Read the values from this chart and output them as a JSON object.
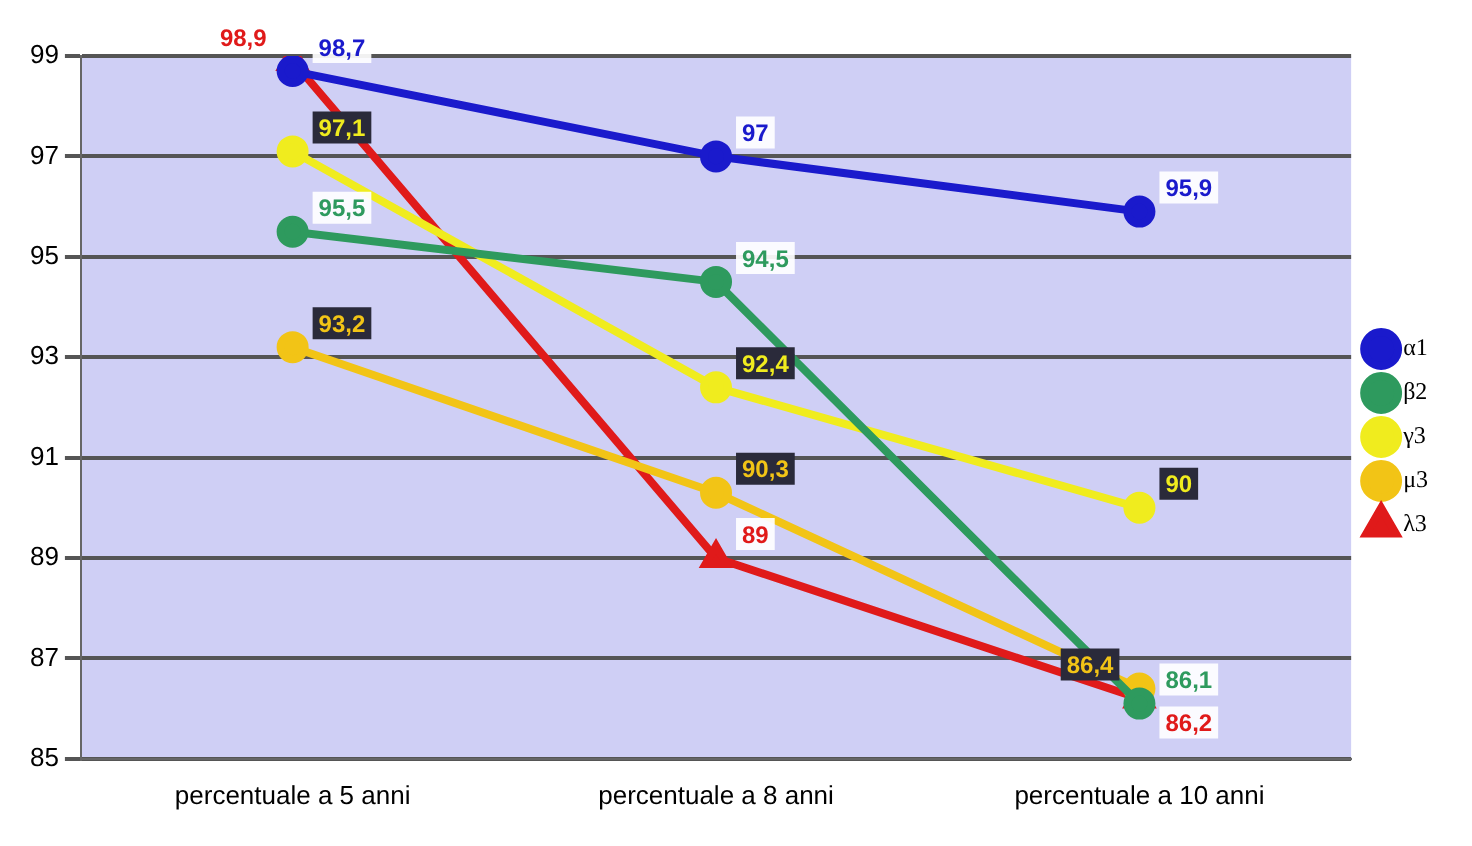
{
  "chart_data": {
    "type": "line",
    "categories": [
      "percentuale a 5 anni",
      "percentuale a 8 anni",
      "percentuale a 10 anni"
    ],
    "series": [
      {
        "name": "α1",
        "color": "#1a1acc",
        "values": [
          98.7,
          97,
          95.9
        ],
        "value_labels": [
          "98,7",
          "97",
          "95,9"
        ],
        "marker": "circle"
      },
      {
        "name": "β2",
        "color": "#2e9a5e",
        "values": [
          95.5,
          94.5,
          86.1
        ],
        "value_labels": [
          "95,5",
          "94,5",
          "86,1"
        ],
        "marker": "circle"
      },
      {
        "name": "γ3",
        "color": "#f0ec1e",
        "values": [
          97.1,
          92.4,
          90
        ],
        "value_labels": [
          "97,1",
          "92,4",
          "90"
        ],
        "marker": "circle"
      },
      {
        "name": "μ3",
        "color": "#f2c416",
        "values": [
          93.2,
          90.3,
          86.4
        ],
        "value_labels": [
          "93,2",
          "90,3",
          "86,4"
        ],
        "marker": "circle"
      },
      {
        "name": "λ3",
        "color": "#e01a1a",
        "values": [
          98.9,
          89,
          86.2
        ],
        "value_labels": [
          "98,9",
          "89",
          "86,2"
        ],
        "marker": "triangle"
      }
    ],
    "ylim": [
      85,
      99
    ],
    "yticks": [
      85,
      87,
      89,
      91,
      93,
      95,
      97,
      99
    ],
    "grid": "y",
    "legend": "right",
    "line_style": "solid"
  }
}
